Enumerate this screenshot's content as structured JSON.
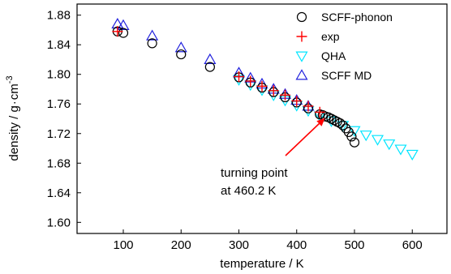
{
  "chart_data": {
    "type": "scatter",
    "xlabel": "temperature / K",
    "ylabel_main": "density / g",
    "ylabel_unit": "cm",
    "ylabel_exp": "-3",
    "xlim": [
      20,
      660
    ],
    "ylim": [
      1.585,
      1.895
    ],
    "xticks": [
      100,
      200,
      300,
      400,
      500,
      600
    ],
    "xtick_labels": [
      "100",
      "200",
      "300",
      "400",
      "500",
      "600"
    ],
    "yticks": [
      1.6,
      1.64,
      1.68,
      1.72,
      1.76,
      1.8,
      1.84,
      1.88
    ],
    "ytick_labels": [
      "1.60",
      "1.64",
      "1.68",
      "1.72",
      "1.76",
      "1.80",
      "1.84",
      "1.88"
    ],
    "legend_position": "top-right",
    "series": [
      {
        "name": "SCFF-phonon",
        "marker": "circle",
        "color": "#000000",
        "x": [
          90,
          100,
          150,
          200,
          250,
          300,
          320,
          340,
          360,
          380,
          400,
          420,
          440,
          445,
          450,
          455,
          460,
          465,
          470,
          475,
          480,
          485,
          490,
          495,
          500
        ],
        "y": [
          1.858,
          1.856,
          1.842,
          1.827,
          1.81,
          1.796,
          1.789,
          1.782,
          1.776,
          1.769,
          1.762,
          1.754,
          1.746,
          1.745,
          1.743,
          1.742,
          1.74,
          1.738,
          1.736,
          1.734,
          1.731,
          1.727,
          1.722,
          1.716,
          1.708
        ]
      },
      {
        "name": "exp",
        "marker": "plus",
        "color": "#ff0000",
        "x": [
          90,
          300,
          320,
          340,
          360,
          380,
          400,
          420,
          440
        ],
        "y": [
          1.858,
          1.797,
          1.791,
          1.784,
          1.778,
          1.772,
          1.764,
          1.757,
          1.749
        ]
      },
      {
        "name": "QHA",
        "marker": "triangle-down",
        "color": "#00e5ff",
        "x": [
          300,
          320,
          340,
          360,
          380,
          400,
          420,
          440,
          460,
          480,
          500,
          520,
          540,
          560,
          580,
          600
        ],
        "y": [
          1.793,
          1.786,
          1.779,
          1.772,
          1.765,
          1.758,
          1.751,
          1.744,
          1.737,
          1.731,
          1.724,
          1.718,
          1.712,
          1.706,
          1.699,
          1.692
        ]
      },
      {
        "name": "SCFF MD",
        "marker": "triangle-up",
        "color": "#2020dd",
        "x": [
          90,
          100,
          150,
          200,
          250,
          300,
          320,
          340,
          360,
          380,
          400,
          420
        ],
        "y": [
          1.868,
          1.866,
          1.852,
          1.836,
          1.82,
          1.802,
          1.795,
          1.787,
          1.78,
          1.773,
          1.765,
          1.757
        ]
      }
    ],
    "annotation": {
      "lines": [
        "turning point",
        "at 460.2 K"
      ],
      "arrow_target": {
        "x": 449,
        "y": 1.741
      },
      "arrow_color": "#ff0000"
    }
  }
}
